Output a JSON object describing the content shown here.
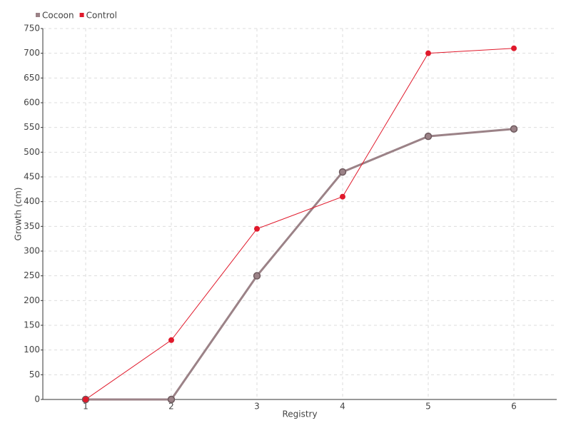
{
  "chart_data": {
    "type": "line",
    "x_label": "Registry",
    "y_label": "Growth (cm)",
    "categories": [
      "1",
      "2",
      "3",
      "4",
      "5",
      "6"
    ],
    "series": [
      {
        "name": "Cocoon",
        "color": "#9b8287",
        "values": [
          0,
          0,
          250,
          460,
          532,
          547
        ]
      },
      {
        "name": "Control",
        "color": "#e0192b",
        "values": [
          0,
          120,
          345,
          410,
          700,
          710
        ]
      }
    ],
    "ylim": [
      0,
      750
    ],
    "yticks": [
      0,
      50,
      100,
      150,
      200,
      250,
      300,
      350,
      400,
      450,
      500,
      550,
      600,
      650,
      700,
      750
    ],
    "grid": true,
    "legend": "top-left"
  }
}
